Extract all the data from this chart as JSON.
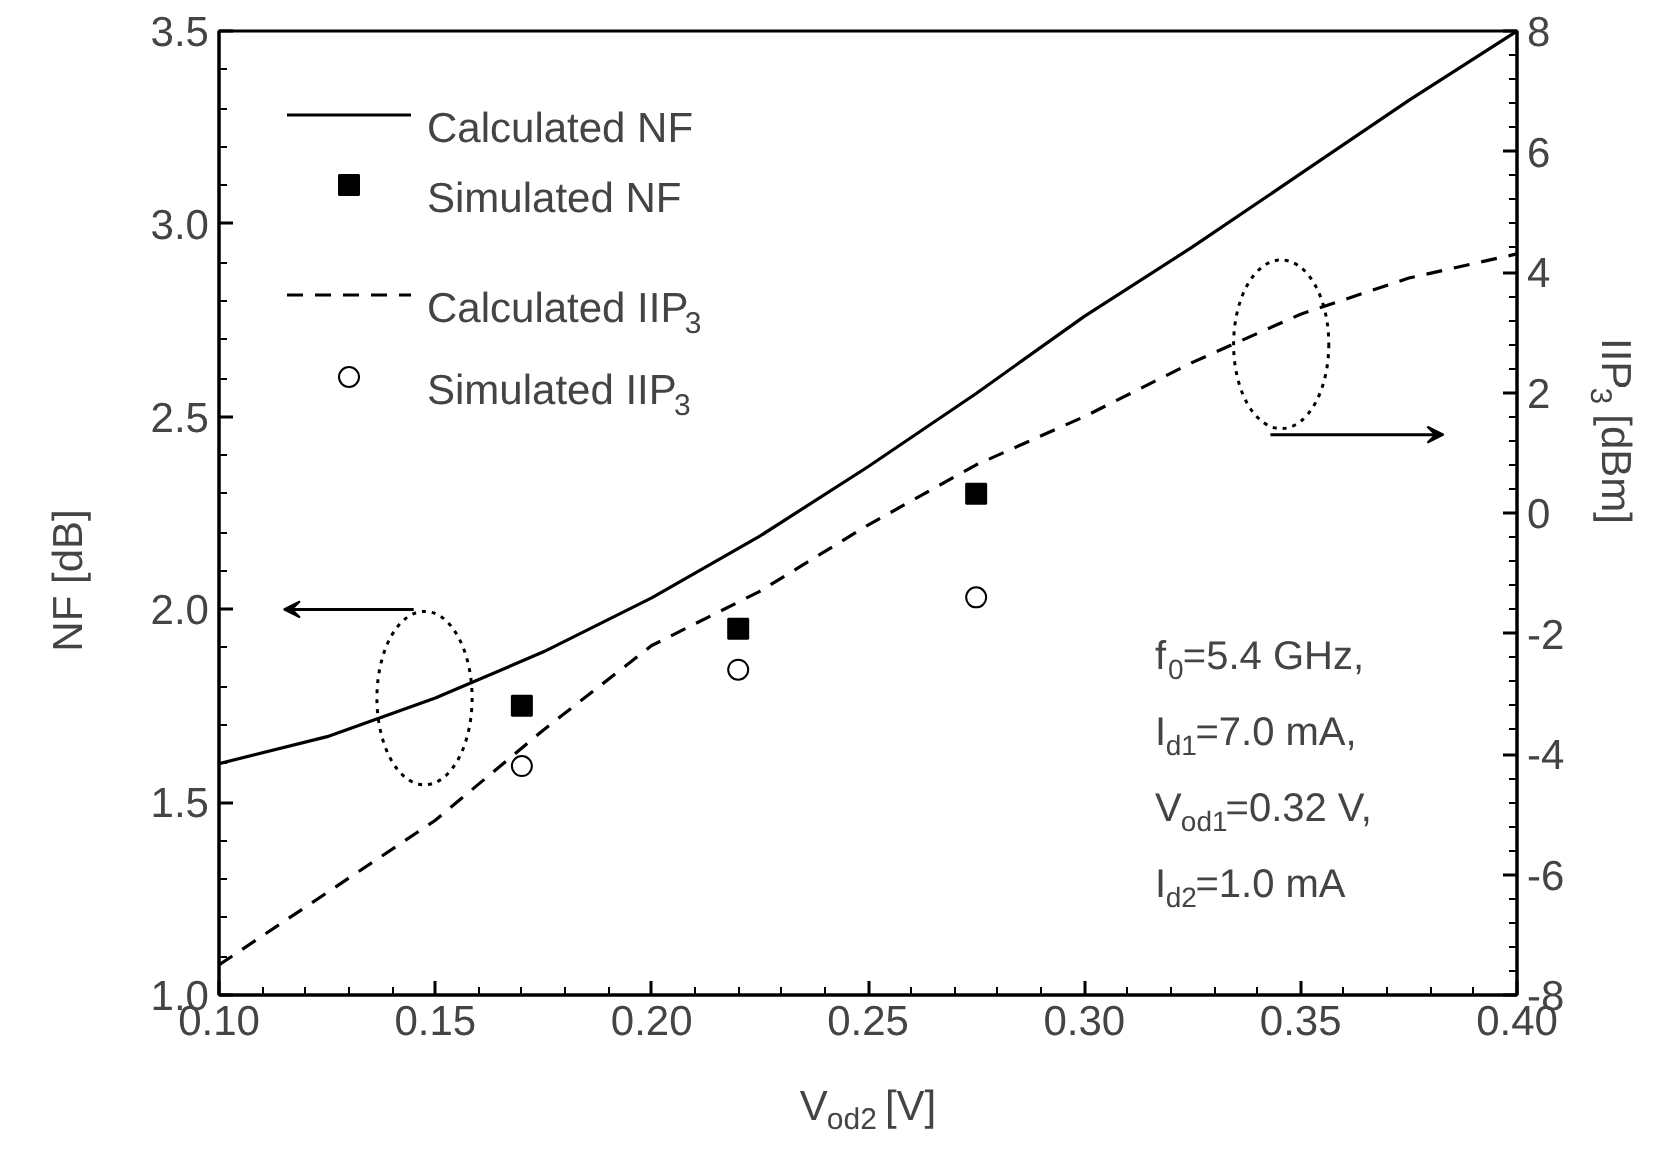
{
  "chart_data": {
    "type": "line",
    "xlabel": "V$_{od2}$ [V]",
    "ylabel": "NF [dB]",
    "y2label": "IIP$_{3}$ [dBm]",
    "xlim": [
      0.1,
      0.4
    ],
    "xticks": [
      {
        "value": 0.1,
        "label": "0.10"
      },
      {
        "value": 0.15,
        "label": "0.15"
      },
      {
        "value": 0.2,
        "label": "0.20"
      },
      {
        "value": 0.25,
        "label": "0.25"
      },
      {
        "value": 0.3,
        "label": "0.30"
      },
      {
        "value": 0.35,
        "label": "0.35"
      },
      {
        "value": 0.4,
        "label": "0.40"
      }
    ],
    "ylim": [
      1.0,
      3.5
    ],
    "yticks": [
      {
        "value": 1.0,
        "label": "1.0"
      },
      {
        "value": 1.5,
        "label": "1.5"
      },
      {
        "value": 2.0,
        "label": "2.0"
      },
      {
        "value": 2.5,
        "label": "2.5"
      },
      {
        "value": 3.0,
        "label": "3.0"
      },
      {
        "value": 3.5,
        "label": "3.5"
      }
    ],
    "y2lim": [
      -8,
      8
    ],
    "y2ticks": [
      -8,
      -6,
      -4,
      -2,
      0,
      2,
      4,
      6,
      8
    ],
    "series": [
      {
        "name": "Calculated NF",
        "color": "#000000",
        "line_style": "solid",
        "x": [
          0.1,
          0.125,
          0.15,
          0.175,
          0.2,
          0.225,
          0.25,
          0.275,
          0.3,
          0.325,
          0.35,
          0.375,
          0.4
        ],
        "values": [
          1.6,
          1.67,
          1.77,
          1.89,
          2.03,
          2.19,
          2.37,
          2.56,
          2.76,
          2.94,
          3.13,
          3.32,
          3.5
        ]
      },
      {
        "name": "Simulated NF",
        "type": "scatter",
        "color": "#000000",
        "marker": "square",
        "x": [
          0.17,
          0.22,
          0.275
        ],
        "values": [
          1.75,
          1.95,
          2.3
        ]
      },
      {
        "name": "Calculated IIP$_{3}$",
        "color": "#000000",
        "line_style": "dashed",
        "axis": "y2",
        "x": [
          0.1,
          0.125,
          0.15,
          0.175,
          0.2,
          0.225,
          0.25,
          0.275,
          0.3,
          0.325,
          0.35,
          0.375,
          0.4
        ],
        "values": [
          -7.5,
          -6.3,
          -5.1,
          -3.6,
          -2.2,
          -1.3,
          -0.2,
          0.8,
          1.6,
          2.5,
          3.3,
          3.9,
          4.3
        ]
      },
      {
        "name": "Simulated IIP$_{3}$",
        "type": "scatter",
        "color": "#000000",
        "marker": "circle",
        "axis": "y2",
        "x": [
          0.17,
          0.22,
          0.275
        ],
        "values": [
          -4.2,
          -2.6,
          -1.4
        ]
      }
    ],
    "annotations": [
      "f$_{0}$=5.4 GHz,",
      "I$_{d1}$=7.0 mA,",
      "V$_{od1}$=0.32 V,",
      "I$_{d2}$=1.0 mA"
    ],
    "legend": "top left",
    "grid": false
  }
}
